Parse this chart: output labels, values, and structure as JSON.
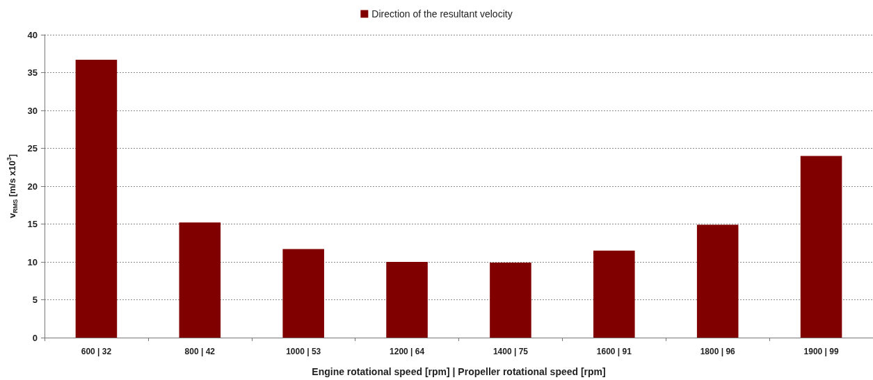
{
  "chart_data": {
    "type": "bar",
    "xlabel": "Engine rotational speed [rpm] | Propeller rotational speed [rpm]",
    "ylabel": "v$_{RMS}$ [m/s x10$^{3}$]",
    "categories": [
      "600 | 32",
      "800 | 42",
      "1000 | 53",
      "1200 | 64",
      "1400 | 75",
      "1600 | 91",
      "1800 | 96",
      "1900 | 99"
    ],
    "series": [
      {
        "name": "Direction of the resultant velocity",
        "color": "#800000",
        "values": [
          36.7,
          15.2,
          11.7,
          10.0,
          9.9,
          11.5,
          14.9,
          24.0
        ]
      }
    ],
    "ylim": [
      0,
      40
    ],
    "yticks": [
      0,
      5,
      10,
      15,
      20,
      25,
      30,
      35,
      40
    ],
    "grid": "y",
    "legend": "top"
  }
}
